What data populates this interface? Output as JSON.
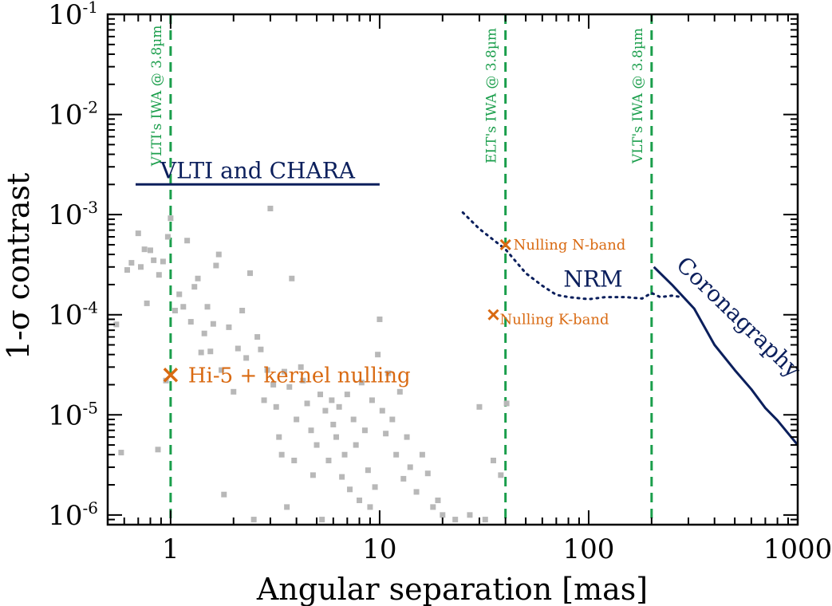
{
  "chart_data": {
    "type": "scatter",
    "xlabel": "Angular separation [mas]",
    "ylabel": "1-σ contrast",
    "x_scale": "log",
    "y_scale": "log",
    "xlim": [
      0.5,
      1000
    ],
    "ylim": [
      8e-07,
      0.1
    ],
    "x_ticks": [
      1,
      10,
      100,
      1000
    ],
    "x_tick_labels": [
      "1",
      "10",
      "100",
      "1000"
    ],
    "y_ticks": [
      1e-06,
      1e-05,
      0.0001,
      0.001,
      0.01,
      0.1
    ],
    "y_tick_labels": [
      {
        "base": "10",
        "exp": "-6"
      },
      {
        "base": "10",
        "exp": "-5"
      },
      {
        "base": "10",
        "exp": "-4"
      },
      {
        "base": "10",
        "exp": "-3"
      },
      {
        "base": "10",
        "exp": "-2"
      },
      {
        "base": "10",
        "exp": "-1"
      }
    ],
    "colors": {
      "navy": "#0b1f5c",
      "green": "#1a9e4b",
      "orange": "#d96a12",
      "gray": "#b8b8b8"
    },
    "vertical_lines": [
      {
        "x": 1,
        "label": "VLTI's IWA @ 3.8µm"
      },
      {
        "x": 40,
        "label": "ELT's IWA @ 3.8µm"
      },
      {
        "x": 200,
        "label": "VLT's IWA @ 3.8µm"
      }
    ],
    "lines": [
      {
        "name": "VLTI and CHARA",
        "style": "solid",
        "x": [
          0.68,
          10.0
        ],
        "y": [
          0.002,
          0.002
        ]
      },
      {
        "name": "NRM",
        "style": "dotted",
        "x": [
          25,
          30,
          35,
          40,
          50,
          60,
          70,
          80,
          100,
          120,
          150,
          180,
          200,
          220,
          250,
          280
        ],
        "y": [
          0.00105,
          0.00072,
          0.00056,
          0.00045,
          0.00026,
          0.000195,
          0.000158,
          0.00015,
          0.000143,
          0.00015,
          0.00015,
          0.000145,
          0.000165,
          0.00015,
          0.000155,
          0.00015
        ]
      },
      {
        "name": "Coronagraphy",
        "style": "solid",
        "x": [
          205,
          250,
          320,
          400,
          500,
          600,
          700,
          800,
          1000
        ],
        "y": [
          0.0003,
          0.0002,
          0.000115,
          5e-05,
          2.8e-05,
          1.8e-05,
          1.17e-05,
          8.8e-06,
          5e-06
        ]
      }
    ],
    "markers": [
      {
        "name": "Hi-5 + kernel nulling",
        "x": 1,
        "y": 2.5e-05
      },
      {
        "name": "Nulling N-band",
        "x": 40,
        "y": 0.0005
      },
      {
        "name": "Nulling K-band",
        "x": 35,
        "y": 0.0001
      }
    ],
    "scatter_points": [
      [
        0.55,
        8e-05
      ],
      [
        0.58,
        4.2e-06
      ],
      [
        0.62,
        0.00028
      ],
      [
        0.65,
        0.00033
      ],
      [
        0.7,
        0.00065
      ],
      [
        0.72,
        0.0003
      ],
      [
        0.75,
        0.00045
      ],
      [
        0.77,
        0.00013
      ],
      [
        0.8,
        0.00044
      ],
      [
        0.83,
        0.00035
      ],
      [
        0.87,
        4.5e-06
      ],
      [
        0.88,
        0.00025
      ],
      [
        0.92,
        0.00034
      ],
      [
        0.95,
        2.2e-05
      ],
      [
        0.97,
        0.0006
      ],
      [
        1.0,
        0.00092
      ],
      [
        1.05,
        0.00011
      ],
      [
        1.1,
        0.00016
      ],
      [
        1.15,
        0.00012
      ],
      [
        1.2,
        0.00055
      ],
      [
        1.25,
        8.5e-05
      ],
      [
        1.3,
        0.00019
      ],
      [
        1.35,
        0.00023
      ],
      [
        1.4,
        4.2e-05
      ],
      [
        1.45,
        6.5e-05
      ],
      [
        1.5,
        0.00012
      ],
      [
        1.55,
        4.3e-05
      ],
      [
        1.6,
        8.1e-05
      ],
      [
        1.65,
        0.00031
      ],
      [
        1.7,
        0.0004
      ],
      [
        1.75,
        2.8e-05
      ],
      [
        1.8,
        1.6e-06
      ],
      [
        1.9,
        7.5e-05
      ],
      [
        2.0,
        1.7e-05
      ],
      [
        2.1,
        4.6e-05
      ],
      [
        2.2,
        0.00011
      ],
      [
        2.3,
        3.7e-05
      ],
      [
        2.4,
        0.00026
      ],
      [
        2.5,
        9e-07
      ],
      [
        2.6,
        6e-05
      ],
      [
        2.7,
        4.5e-05
      ],
      [
        2.8,
        1.4e-05
      ],
      [
        2.9,
        2.8e-05
      ],
      [
        3.0,
        0.00115
      ],
      [
        3.1,
        2e-05
      ],
      [
        3.2,
        1.2e-05
      ],
      [
        3.3,
        6e-06
      ],
      [
        3.4,
        4e-06
      ],
      [
        3.5,
        2.7e-05
      ],
      [
        3.6,
        1.2e-06
      ],
      [
        3.7,
        1.9e-05
      ],
      [
        3.8,
        0.00023
      ],
      [
        3.9,
        3.5e-06
      ],
      [
        4.0,
        9e-06
      ],
      [
        4.2,
        3e-05
      ],
      [
        4.3,
        2.2e-05
      ],
      [
        4.5,
        1.3e-05
      ],
      [
        4.7,
        7e-06
      ],
      [
        4.8,
        2.5e-06
      ],
      [
        5.0,
        5e-06
      ],
      [
        5.2,
        1.6e-05
      ],
      [
        5.3,
        9e-07
      ],
      [
        5.5,
        1.1e-05
      ],
      [
        5.7,
        3.5e-06
      ],
      [
        5.9,
        1.4e-05
      ],
      [
        6.0,
        8e-06
      ],
      [
        6.2,
        6e-06
      ],
      [
        6.4,
        1.2e-05
      ],
      [
        6.6,
        2.4e-06
      ],
      [
        6.8,
        4e-06
      ],
      [
        7.0,
        1.6e-05
      ],
      [
        7.2,
        1.8e-06
      ],
      [
        7.5,
        9e-06
      ],
      [
        7.7,
        5e-06
      ],
      [
        8.0,
        1.4e-06
      ],
      [
        8.2,
        2.1e-05
      ],
      [
        8.5,
        7e-06
      ],
      [
        8.8,
        2.8e-06
      ],
      [
        9.0,
        1.2e-06
      ],
      [
        9.2,
        1.4e-05
      ],
      [
        9.5,
        1.9e-06
      ],
      [
        9.8,
        4e-05
      ],
      [
        10.0,
        9e-05
      ],
      [
        10.3,
        1.1e-05
      ],
      [
        10.7,
        6.5e-06
      ],
      [
        11.0,
        2.6e-05
      ],
      [
        11.5,
        9e-06
      ],
      [
        12.0,
        4e-06
      ],
      [
        12.5,
        1.7e-05
      ],
      [
        13.0,
        2.3e-06
      ],
      [
        13.5,
        6e-06
      ],
      [
        14.0,
        3e-06
      ],
      [
        15.0,
        1.7e-06
      ],
      [
        16.0,
        4e-06
      ],
      [
        17.0,
        2.6e-06
      ],
      [
        18.0,
        1.2e-06
      ],
      [
        19.0,
        1.4e-06
      ],
      [
        20.0,
        1e-06
      ],
      [
        23.0,
        9e-07
      ],
      [
        27.0,
        1e-06
      ],
      [
        30.0,
        1.2e-05
      ],
      [
        32.0,
        9e-07
      ],
      [
        35.0,
        3.5e-06
      ],
      [
        38.0,
        2.5e-06
      ],
      [
        40.5,
        1.3e-05
      ]
    ]
  }
}
